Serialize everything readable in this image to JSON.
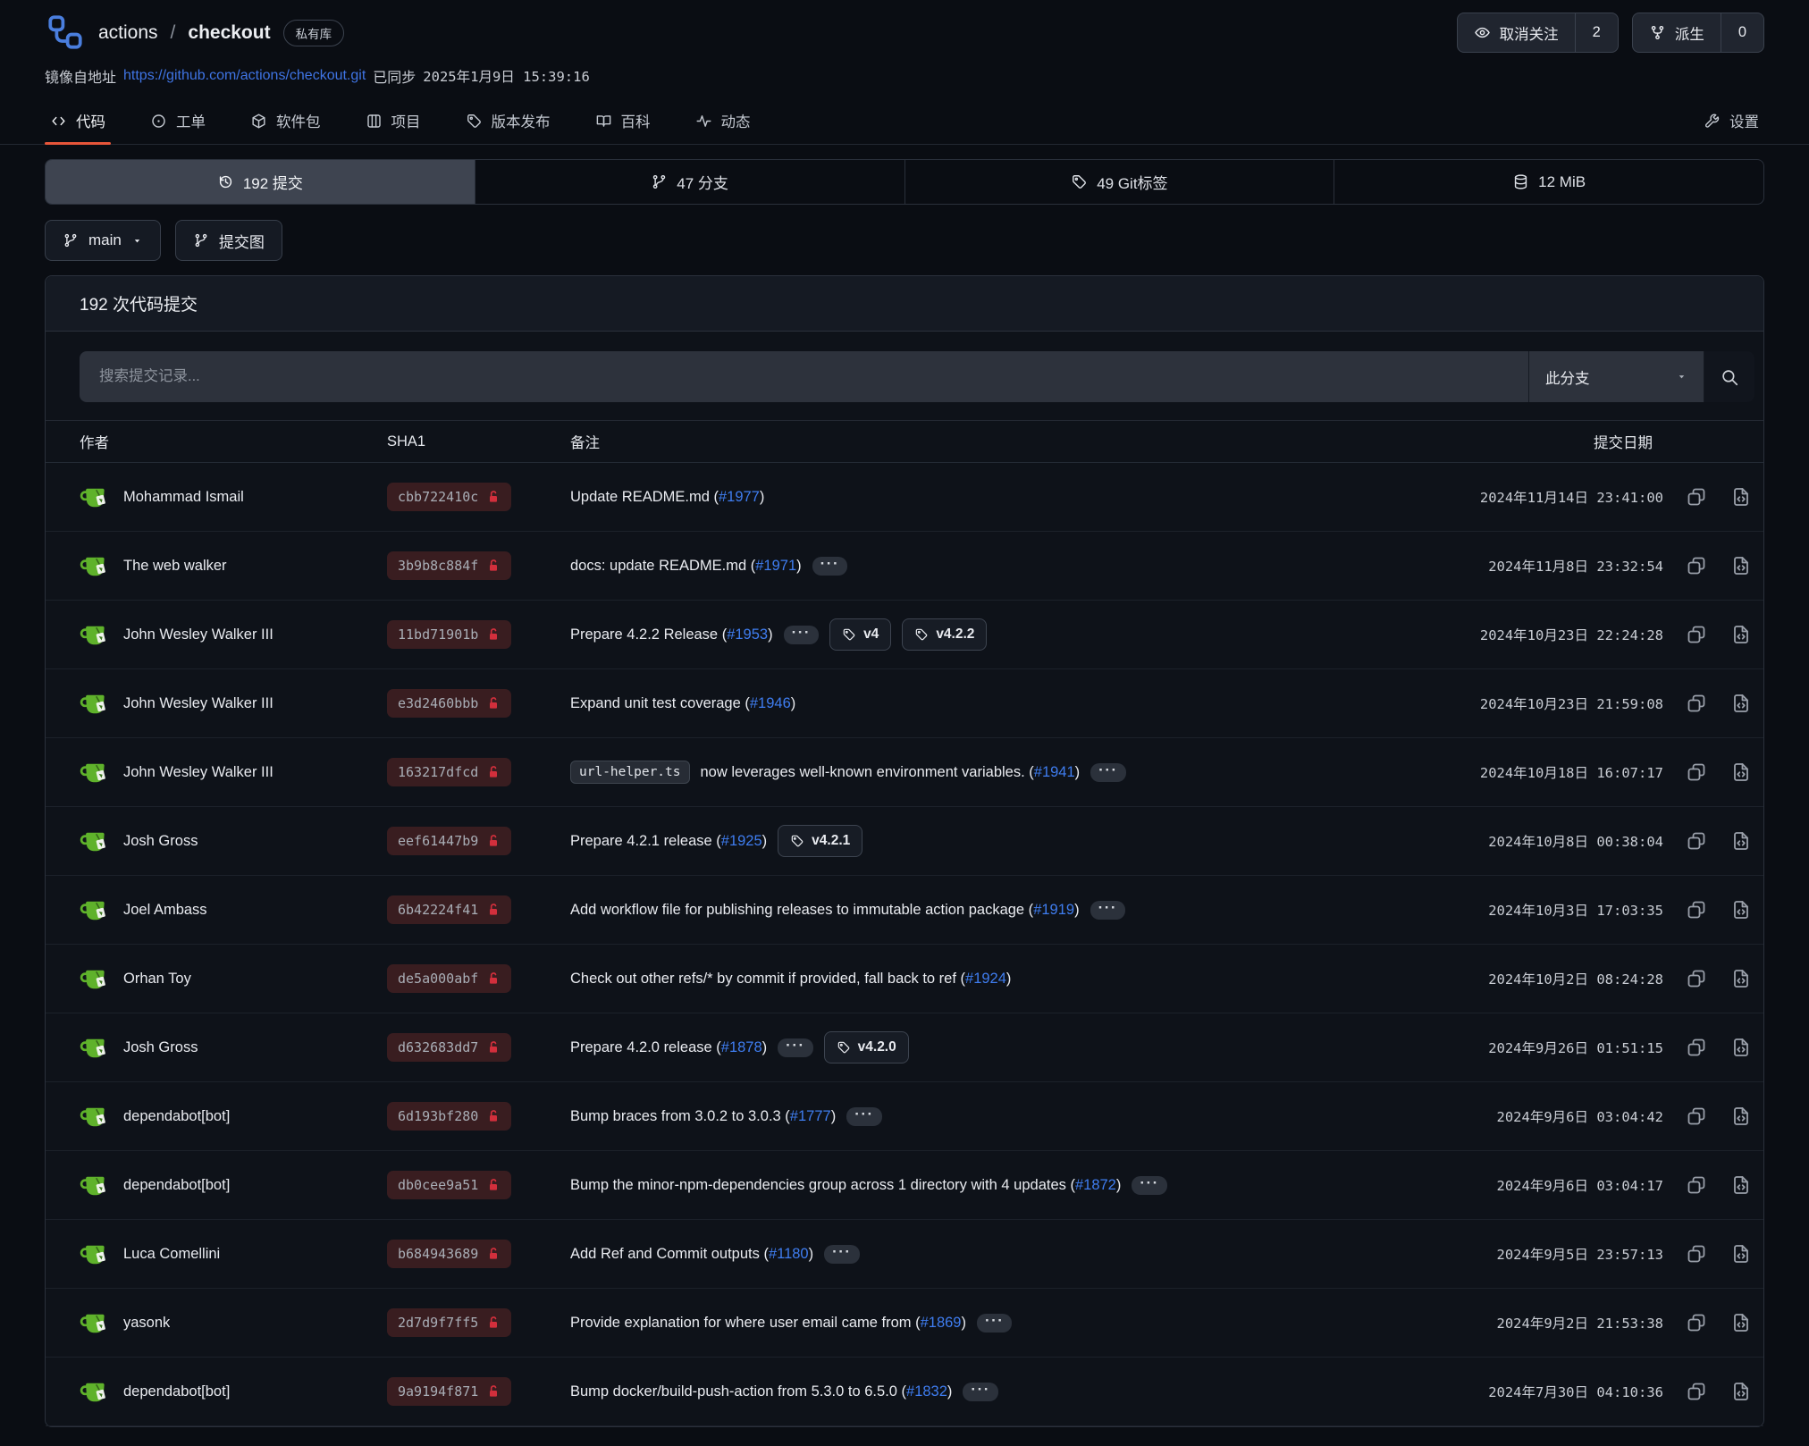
{
  "header": {
    "owner": "actions",
    "separator": "/",
    "repo": "checkout",
    "badge": "私有库",
    "unwatch_label": "取消关注",
    "unwatch_count": "2",
    "fork_label": "派生",
    "fork_count": "0"
  },
  "mirror": {
    "label": "镜像自地址",
    "url": "https://github.com/actions/checkout.git",
    "synced_label": "已同步",
    "synced_time": "2025年1月9日 15:39:16"
  },
  "tabs": [
    {
      "key": "code",
      "icon": "code-icon",
      "label": "代码",
      "active": true
    },
    {
      "key": "issues",
      "icon": "issues-icon",
      "label": "工单",
      "active": false
    },
    {
      "key": "packages",
      "icon": "package-icon",
      "label": "软件包",
      "active": false
    },
    {
      "key": "projects",
      "icon": "projects-icon",
      "label": "项目",
      "active": false
    },
    {
      "key": "releases",
      "icon": "releases-icon",
      "label": "版本发布",
      "active": false
    },
    {
      "key": "wiki",
      "icon": "wiki-icon",
      "label": "百科",
      "active": false
    },
    {
      "key": "activity",
      "icon": "activity-icon",
      "label": "动态",
      "active": false
    }
  ],
  "settings_tab": {
    "label": "设置"
  },
  "stats": [
    {
      "key": "commits",
      "icon": "history-icon",
      "label": "192 提交",
      "active": true
    },
    {
      "key": "branches",
      "icon": "branch-icon",
      "label": "47 分支",
      "active": false
    },
    {
      "key": "git-tags",
      "icon": "tag-icon",
      "label": "49 Git标签",
      "active": false
    },
    {
      "key": "size",
      "icon": "database-icon",
      "label": "12 MiB",
      "active": false
    }
  ],
  "toolbar": {
    "branch_button": "main",
    "graph_button": "提交图"
  },
  "commits_panel": {
    "title": "192 次代码提交",
    "search_placeholder": "搜索提交记录...",
    "scope_dropdown": "此分支",
    "expander_glyph": "···",
    "columns": {
      "author": "作者",
      "sha": "SHA1",
      "message": "备注",
      "date": "提交日期"
    }
  },
  "accent_colors": {
    "active_tab_underline": "#e8563a",
    "link_blue": "#3f7df0",
    "unverified_lock_red": "#d22f3c",
    "sha_badge_bg": "#391d20",
    "avatar_green": "#5fb22b"
  },
  "commits": [
    {
      "author": "Mohammad Ismail",
      "sha": "cbb722410c",
      "text": "Update README.md (",
      "issue": "#1977",
      "after": ")",
      "expander": false,
      "tags": [],
      "date": "2024年11月14日 23:41:00"
    },
    {
      "author": "The web walker",
      "sha": "3b9b8c884f",
      "text": "docs: update README.md (",
      "issue": "#1971",
      "after": ")",
      "expander": true,
      "tags": [],
      "date": "2024年11月8日 23:32:54"
    },
    {
      "author": "John Wesley Walker III",
      "sha": "11bd71901b",
      "text": "Prepare 4.2.2 Release (",
      "issue": "#1953",
      "after": ")",
      "expander": true,
      "tags": [
        "v4",
        "v4.2.2"
      ],
      "date": "2024年10月23日 22:24:28"
    },
    {
      "author": "John Wesley Walker III",
      "sha": "e3d2460bbb",
      "text": "Expand unit test coverage (",
      "issue": "#1946",
      "after": ")",
      "expander": false,
      "tags": [],
      "date": "2024年10月23日 21:59:08"
    },
    {
      "author": "John Wesley Walker III",
      "sha": "163217dfcd",
      "code": "url-helper.ts",
      "text": " now leverages well-known environment variables. (",
      "issue": "#1941",
      "after": ")",
      "expander": true,
      "tags": [],
      "date": "2024年10月18日 16:07:17"
    },
    {
      "author": "Josh Gross",
      "sha": "eef61447b9",
      "text": "Prepare 4.2.1 release (",
      "issue": "#1925",
      "after": ")",
      "expander": false,
      "tags": [
        "v4.2.1"
      ],
      "date": "2024年10月8日 00:38:04"
    },
    {
      "author": "Joel Ambass",
      "sha": "6b42224f41",
      "text": "Add workflow file for publishing releases to immutable action package (",
      "issue": "#1919",
      "after": ")",
      "expander": true,
      "tags": [],
      "date": "2024年10月3日 17:03:35"
    },
    {
      "author": "Orhan Toy",
      "sha": "de5a000abf",
      "text": "Check out other refs/* by commit if provided, fall back to ref (",
      "issue": "#1924",
      "after": ")",
      "expander": false,
      "tags": [],
      "date": "2024年10月2日 08:24:28"
    },
    {
      "author": "Josh Gross",
      "sha": "d632683dd7",
      "text": "Prepare 4.2.0 release (",
      "issue": "#1878",
      "after": ")",
      "expander": true,
      "tags": [
        "v4.2.0"
      ],
      "date": "2024年9月26日 01:51:15"
    },
    {
      "author": "dependabot[bot]",
      "sha": "6d193bf280",
      "text": "Bump braces from 3.0.2 to 3.0.3 (",
      "issue": "#1777",
      "after": ")",
      "expander": true,
      "tags": [],
      "date": "2024年9月6日 03:04:42"
    },
    {
      "author": "dependabot[bot]",
      "sha": "db0cee9a51",
      "text": "Bump the minor-npm-dependencies group across 1 directory with 4 updates (",
      "issue": "#1872",
      "after": ")",
      "expander": true,
      "tags": [],
      "date": "2024年9月6日 03:04:17"
    },
    {
      "author": "Luca Comellini",
      "sha": "b684943689",
      "text": "Add Ref and Commit outputs (",
      "issue": "#1180",
      "after": ")",
      "expander": true,
      "tags": [],
      "date": "2024年9月5日 23:57:13"
    },
    {
      "author": "yasonk",
      "sha": "2d7d9f7ff5",
      "text": "Provide explanation for where user email came from (",
      "issue": "#1869",
      "after": ")",
      "expander": true,
      "tags": [],
      "date": "2024年9月2日 21:53:38"
    },
    {
      "author": "dependabot[bot]",
      "sha": "9a9194f871",
      "text": "Bump docker/build-push-action from 5.3.0 to 6.5.0 (",
      "issue": "#1832",
      "after": ")",
      "expander": true,
      "tags": [],
      "date": "2024年7月30日 04:10:36"
    }
  ]
}
